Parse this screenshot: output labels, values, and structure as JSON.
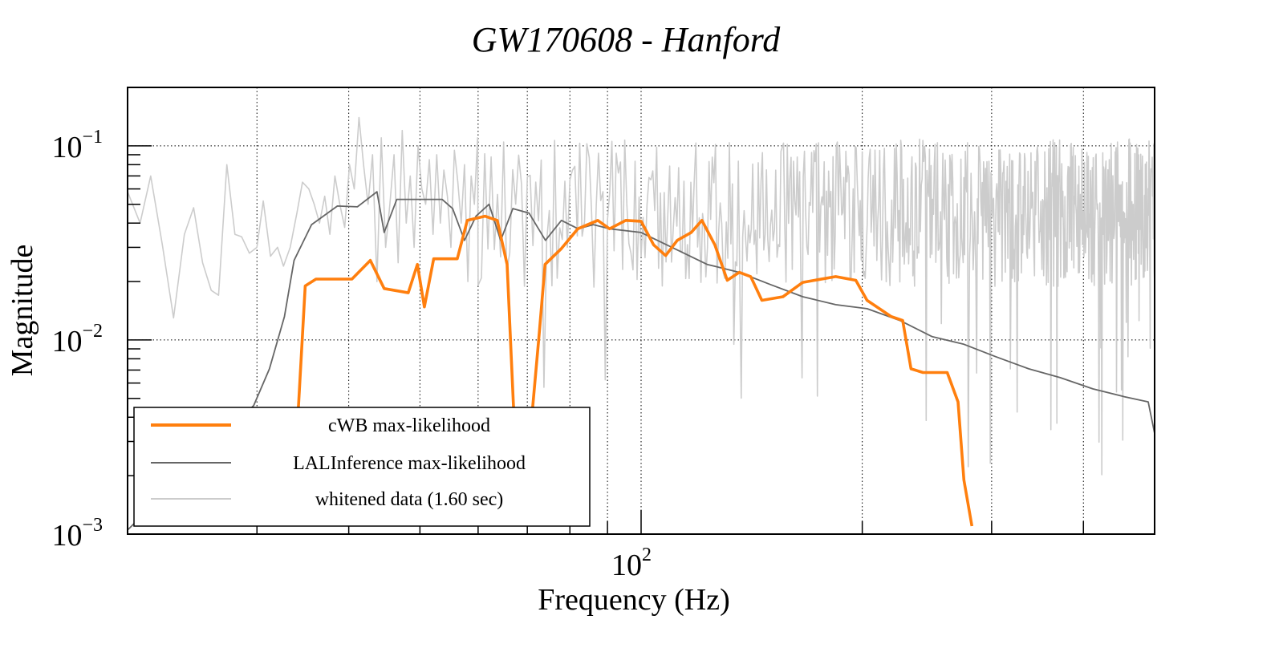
{
  "chart_data": {
    "type": "line",
    "title": "GW170608 - Hanford",
    "xlabel": "Frequency (Hz)",
    "ylabel": "Magnitude",
    "xscale": "log",
    "yscale": "log",
    "xlim": [
      20,
      500
    ],
    "ylim": [
      0.001,
      0.2
    ],
    "grid": true,
    "x_tick_labels": [
      {
        "value": 100,
        "base": "10",
        "exp": "2"
      }
    ],
    "y_tick_labels": [
      {
        "value": 0.1,
        "base": "10",
        "exp": "−1"
      },
      {
        "value": 0.01,
        "base": "10",
        "exp": "−2"
      },
      {
        "value": 0.001,
        "base": "10",
        "exp": "−3"
      }
    ],
    "x_gridlines": [
      30,
      40,
      50,
      60,
      70,
      80,
      90,
      100,
      200,
      300,
      400
    ],
    "y_gridlines": [
      0.1,
      0.01
    ],
    "legend": {
      "placement": "bottom-left",
      "entries": [
        {
          "label": "cWB max-likelihood",
          "color": "#ff7f0e"
        },
        {
          "label": "LALInference max-likelihood",
          "color": "#666666"
        },
        {
          "label": "whitened data (1.60 sec)",
          "color": "#cccccc"
        }
      ]
    },
    "series": [
      {
        "name": "whitened data (1.60 sec)",
        "color": "#cccccc",
        "x": [
          20.0,
          20.8,
          21.5,
          22.3,
          23.1,
          23.9,
          24.6,
          25.3,
          26.0,
          26.6,
          27.3,
          28.0,
          28.6,
          29.3,
          30.0,
          30.6,
          31.3,
          32.0,
          32.6,
          33.3,
          34.0,
          34.6,
          35.3,
          35.9,
          36.5,
          37.1,
          37.7,
          38.3,
          38.9,
          39.5,
          40.1,
          40.7,
          41.3,
          41.9,
          42.5,
          43.1,
          43.7,
          44.3,
          44.9,
          45.5,
          46.1,
          46.7,
          47.3,
          47.9,
          48.5,
          49.1,
          49.7,
          50.3,
          50.9,
          51.5,
          52.1,
          52.7,
          53.3,
          53.9,
          54.5,
          55.1,
          55.7,
          56.3,
          56.9,
          57.5,
          58.1,
          58.7,
          59.3,
          59.9
        ],
        "y": [
          0.058,
          0.04,
          0.07,
          0.031,
          0.013,
          0.035,
          0.048,
          0.025,
          0.018,
          0.017,
          0.08,
          0.035,
          0.034,
          0.028,
          0.03,
          0.052,
          0.027,
          0.03,
          0.024,
          0.03,
          0.045,
          0.065,
          0.06,
          0.05,
          0.04,
          0.055,
          0.035,
          0.07,
          0.05,
          0.038,
          0.08,
          0.06,
          0.14,
          0.08,
          0.05,
          0.09,
          0.02,
          0.11,
          0.03,
          0.05,
          0.09,
          0.025,
          0.12,
          0.04,
          0.07,
          0.03,
          0.1,
          0.06,
          0.05,
          0.085,
          0.035,
          0.09,
          0.04,
          0.075,
          0.055,
          0.03,
          0.095,
          0.065,
          0.04,
          0.08,
          0.02,
          0.07,
          0.05,
          0.11
        ],
        "dense_high_frequency": {
          "f_start": 60,
          "f_end": 500,
          "points_per_hz": 1.6,
          "median": 0.045,
          "typical_range": [
            0.015,
            0.12
          ],
          "occasional_dips_to": 0.002
        }
      },
      {
        "name": "LALInference max-likelihood",
        "color": "#666666",
        "x": [
          20.0,
          29.7,
          31.2,
          32.7,
          33.7,
          35.6,
          38.6,
          41.1,
          43.7,
          44.7,
          46.5,
          53.6,
          55.4,
          57.5,
          59.6,
          62.1,
          64.4,
          66.9,
          70.4,
          74.1,
          77.9,
          82.1,
          86.1,
          90.6,
          100,
          111,
          123,
          136,
          150,
          166,
          184,
          203,
          225,
          249,
          275,
          304,
          337,
          372,
          412,
          455,
          490,
          500
        ],
        "y": [
          0.00105,
          0.0046,
          0.0071,
          0.0132,
          0.0257,
          0.0393,
          0.049,
          0.0485,
          0.058,
          0.0358,
          0.053,
          0.053,
          0.0475,
          0.0326,
          0.0434,
          0.05,
          0.0326,
          0.0475,
          0.045,
          0.0326,
          0.0413,
          0.0374,
          0.0393,
          0.0374,
          0.0358,
          0.0296,
          0.0245,
          0.0223,
          0.0193,
          0.0167,
          0.0152,
          0.0145,
          0.0126,
          0.0104,
          0.0095,
          0.0082,
          0.0071,
          0.0064,
          0.0056,
          0.0051,
          0.0048,
          0.0033
        ]
      },
      {
        "name": "cWB max-likelihood",
        "color": "#ff7f0e",
        "x": [
          33.4,
          34.2,
          34.9,
          36.1,
          40.4,
          42.8,
          44.7,
          48.2,
          49.6,
          50.7,
          52.2,
          56.2,
          58.0,
          61.3,
          63.7,
          65.7,
          67.0,
          68.0,
          70.4,
          72.6,
          74.0,
          77.9,
          82.0,
          87.3,
          90.6,
          95.3,
          100,
          104,
          108,
          112,
          117,
          121,
          126,
          131,
          136,
          141,
          146,
          156,
          166,
          184,
          196,
          203,
          219,
          227,
          233,
          242,
          261,
          270,
          275,
          282
        ],
        "y": [
          0.0011,
          0.0048,
          0.019,
          0.0206,
          0.0206,
          0.0257,
          0.0184,
          0.0175,
          0.0245,
          0.0148,
          0.0262,
          0.0262,
          0.0413,
          0.0434,
          0.0413,
          0.0245,
          0.0048,
          0.0016,
          0.0028,
          0.0104,
          0.0245,
          0.0296,
          0.0374,
          0.0413,
          0.0374,
          0.0413,
          0.0409,
          0.0309,
          0.0272,
          0.0326,
          0.0358,
          0.0413,
          0.0309,
          0.0203,
          0.0223,
          0.0212,
          0.016,
          0.0167,
          0.0198,
          0.0212,
          0.0203,
          0.016,
          0.0132,
          0.0126,
          0.0071,
          0.0068,
          0.0068,
          0.0048,
          0.0019,
          0.0011
        ]
      }
    ]
  }
}
